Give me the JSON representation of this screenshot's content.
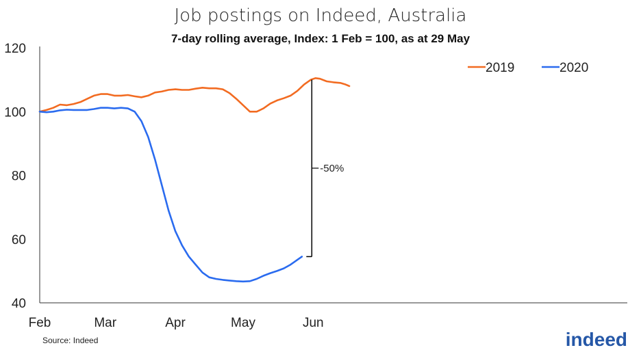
{
  "chart_data": {
    "type": "line",
    "title": "Job postings on Indeed, Australia",
    "subtitle": "7-day rolling average, Index: 1 Feb = 100, as at 29 May",
    "ylim": [
      40,
      120
    ],
    "yticks": [
      40,
      60,
      80,
      100,
      120
    ],
    "xlabels": [
      {
        "label": "Feb",
        "day": 0
      },
      {
        "label": "Mar",
        "day": 29
      },
      {
        "label": "Apr",
        "day": 60
      },
      {
        "label": "May",
        "day": 90
      },
      {
        "label": "Jun",
        "day": 121
      }
    ],
    "xmax_day": 137,
    "series": [
      {
        "name": "2019",
        "color": "#f26b21",
        "points": [
          [
            0,
            100
          ],
          [
            3,
            100.5
          ],
          [
            6,
            101.2
          ],
          [
            9,
            102.2
          ],
          [
            12,
            102.0
          ],
          [
            15,
            102.4
          ],
          [
            18,
            103.0
          ],
          [
            21,
            104.0
          ],
          [
            24,
            105.0
          ],
          [
            27,
            105.5
          ],
          [
            30,
            105.5
          ],
          [
            33,
            105.0
          ],
          [
            36,
            105.0
          ],
          [
            39,
            105.2
          ],
          [
            42,
            104.8
          ],
          [
            45,
            104.5
          ],
          [
            48,
            105.0
          ],
          [
            51,
            106.0
          ],
          [
            54,
            106.3
          ],
          [
            57,
            106.8
          ],
          [
            60,
            107.0
          ],
          [
            63,
            106.8
          ],
          [
            66,
            106.8
          ],
          [
            69,
            107.2
          ],
          [
            72,
            107.5
          ],
          [
            75,
            107.3
          ],
          [
            78,
            107.3
          ],
          [
            81,
            107.0
          ],
          [
            84,
            105.8
          ],
          [
            87,
            104.0
          ],
          [
            90,
            102.0
          ],
          [
            93,
            100.0
          ],
          [
            96,
            100.0
          ],
          [
            99,
            101.0
          ],
          [
            102,
            102.5
          ],
          [
            105,
            103.5
          ],
          [
            108,
            104.2
          ],
          [
            111,
            105.0
          ],
          [
            114,
            106.5
          ],
          [
            117,
            108.5
          ],
          [
            120,
            110.0
          ],
          [
            122,
            110.5
          ],
          [
            124,
            110.3
          ],
          [
            127,
            109.5
          ],
          [
            130,
            109.2
          ],
          [
            133,
            109.0
          ],
          [
            135,
            108.6
          ],
          [
            137,
            108.0
          ]
        ]
      },
      {
        "name": "2020",
        "color": "#2a6bef",
        "points": [
          [
            0,
            100
          ],
          [
            3,
            99.8
          ],
          [
            6,
            100.0
          ],
          [
            9,
            100.4
          ],
          [
            12,
            100.6
          ],
          [
            15,
            100.5
          ],
          [
            18,
            100.5
          ],
          [
            21,
            100.5
          ],
          [
            24,
            100.8
          ],
          [
            27,
            101.2
          ],
          [
            30,
            101.2
          ],
          [
            33,
            101.0
          ],
          [
            36,
            101.2
          ],
          [
            39,
            101.0
          ],
          [
            42,
            100.0
          ],
          [
            45,
            97.0
          ],
          [
            48,
            92.0
          ],
          [
            51,
            85.0
          ],
          [
            54,
            77.0
          ],
          [
            57,
            69.0
          ],
          [
            60,
            62.5
          ],
          [
            63,
            58.0
          ],
          [
            66,
            54.5
          ],
          [
            69,
            52.0
          ],
          [
            72,
            49.5
          ],
          [
            75,
            48.0
          ],
          [
            78,
            47.5
          ],
          [
            81,
            47.2
          ],
          [
            84,
            47.0
          ],
          [
            87,
            46.8
          ],
          [
            90,
            46.7
          ],
          [
            93,
            46.8
          ],
          [
            96,
            47.5
          ],
          [
            99,
            48.5
          ],
          [
            102,
            49.3
          ],
          [
            105,
            50.0
          ],
          [
            108,
            50.8
          ],
          [
            111,
            52.0
          ],
          [
            114,
            53.5
          ],
          [
            116,
            54.5
          ]
        ]
      }
    ],
    "legend": {
      "position": "top-right",
      "entries": [
        "2019",
        "2020"
      ]
    },
    "annotation": {
      "label": "-50%",
      "day": 121,
      "from": 110.0,
      "to": 54.5
    },
    "grid": false,
    "source": "Source: Indeed",
    "logo": "indeed"
  }
}
